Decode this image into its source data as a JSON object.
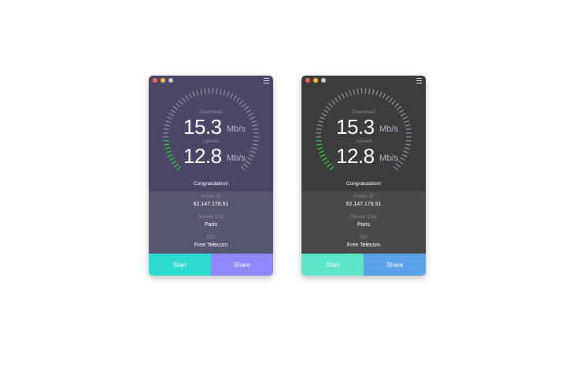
{
  "windows": [
    {
      "theme": {
        "top": "#4a4766",
        "info": "#575670",
        "label": "#8e8ca4",
        "start": "#2ddbd0",
        "share": "#8f88fc"
      },
      "download_label": "Download",
      "download_value": "15.3",
      "download_unit": "Mb/s",
      "upload_label": "Upload",
      "upload_value": "12.8",
      "upload_unit": "Mb/s",
      "status": "Congratulation!",
      "public_ip_label": "Public IP",
      "public_ip": "62.147.178.51",
      "server_city_label": "Server City",
      "server_city": "Paris",
      "isp_label": "ISP",
      "isp": "Free Telecom",
      "start_label": "Start",
      "share_label": "Share",
      "gauge_level": 0.16
    },
    {
      "theme": {
        "top": "#3c3c3c",
        "info": "#4a4a4a",
        "label": "#8a8a8a",
        "start": "#5ee5c8",
        "share": "#5aa3e8"
      },
      "download_label": "Download",
      "download_value": "15.3",
      "download_unit": "Mb/s",
      "upload_label": "Upload",
      "upload_value": "12.8",
      "upload_unit": "Mb/s",
      "status": "Congratulation!",
      "public_ip_label": "Public IP",
      "public_ip": "62.147.178.51",
      "server_city_label": "Server City",
      "server_city": "Paris",
      "isp_label": "ISP",
      "isp": "Free Telecom",
      "start_label": "Start",
      "share_label": "Share",
      "gauge_level": 0.16
    }
  ],
  "traffic_lights": [
    "#fc605b",
    "#fdbc40",
    "#c8c8c8"
  ],
  "gauge_colors": {
    "active": "#2bd13c",
    "inactive": "#8e8e9a"
  }
}
